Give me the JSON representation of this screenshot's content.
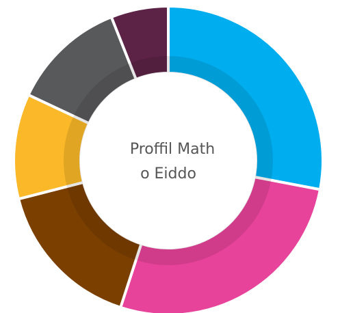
{
  "chart_data": {
    "type": "donut",
    "title": [
      "Proffil Math",
      "o Eiddo"
    ],
    "categories": [
      null,
      null,
      null,
      null,
      null,
      null
    ],
    "values": [
      28,
      27,
      16,
      11,
      12,
      6
    ],
    "colors": [
      "#00aeef",
      "#e8439a",
      "#7b3f00",
      "#fbb829",
      "#58595b",
      "#5c2346"
    ]
  }
}
